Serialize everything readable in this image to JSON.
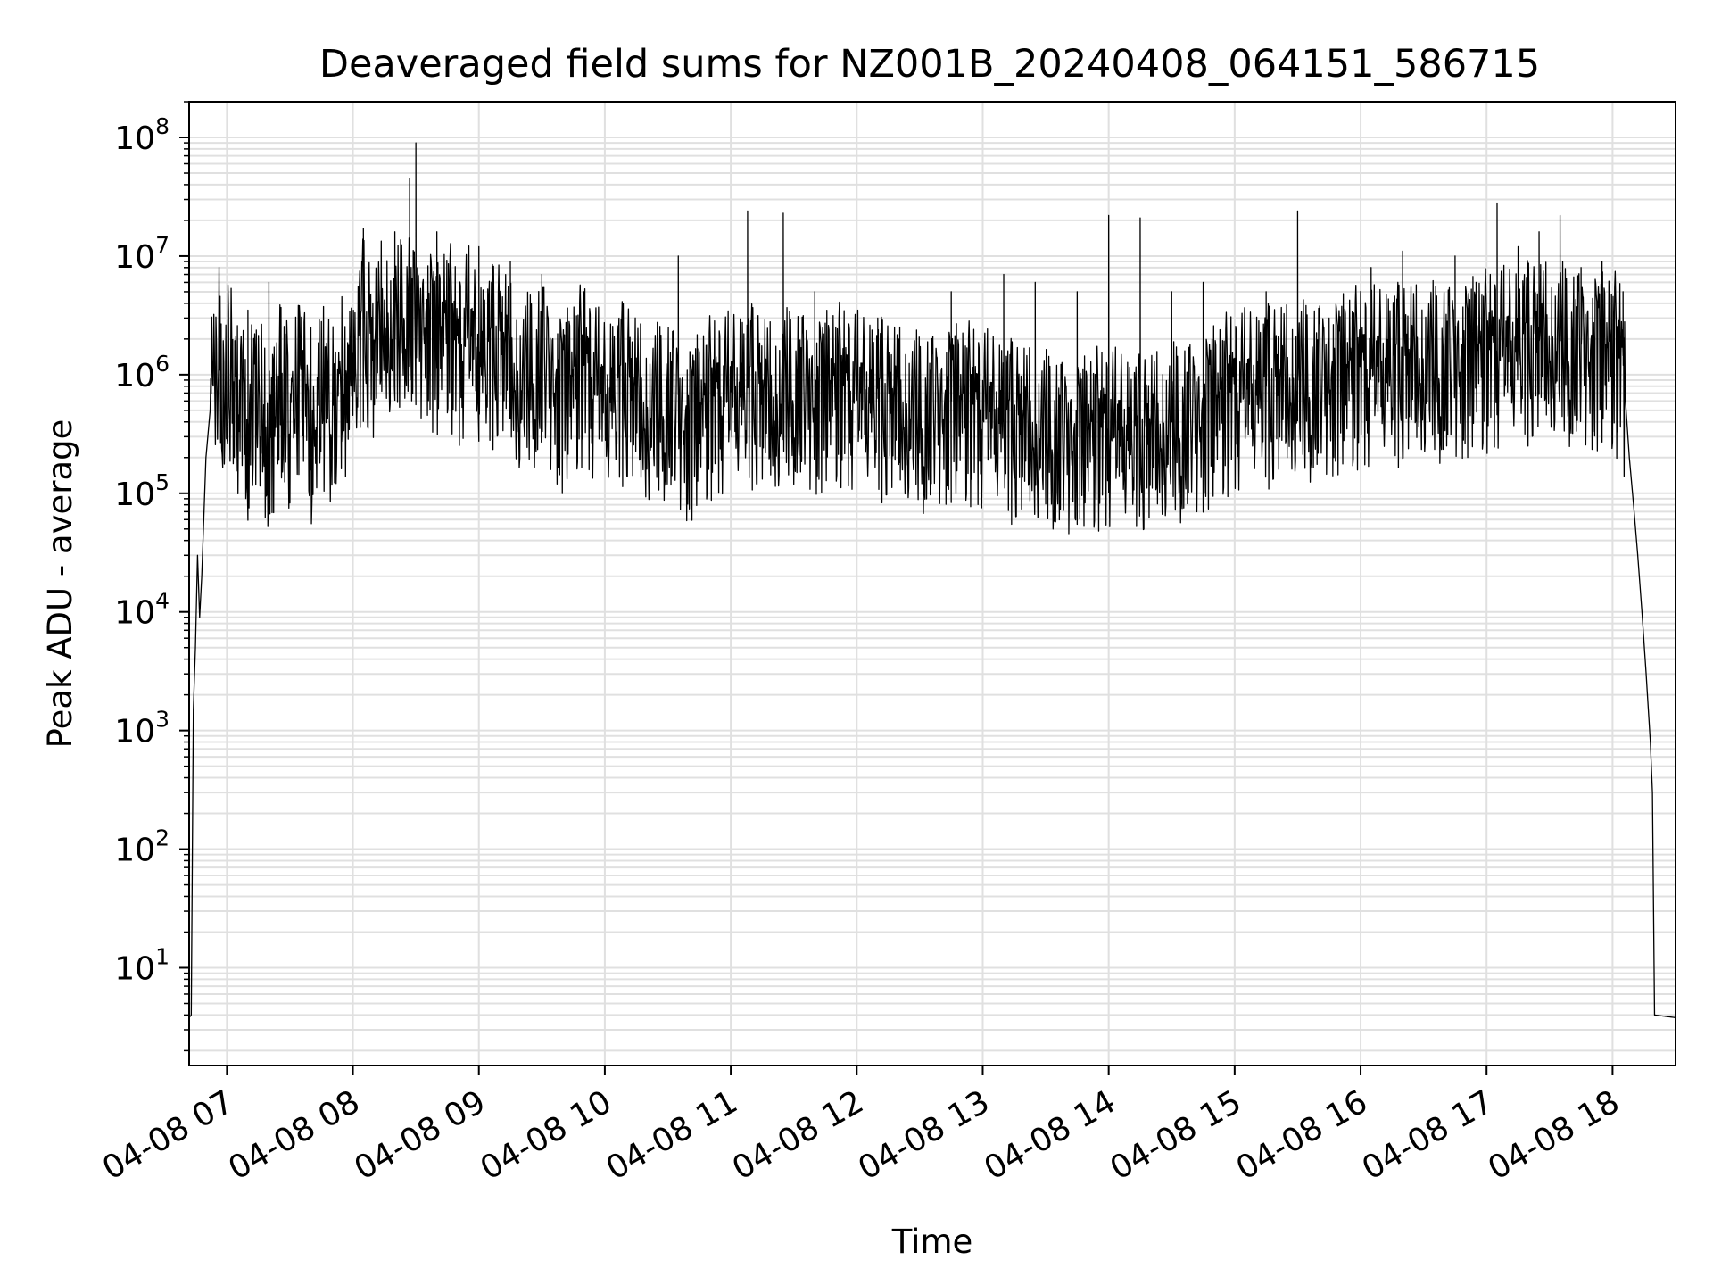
{
  "chart_data": {
    "type": "line",
    "title": "Deaveraged field sums for NZ001B_20240408_064151_586715",
    "xlabel": "Time",
    "ylabel": "Peak ADU - average",
    "yscale": "log",
    "grid": true,
    "line_color": "#000000",
    "grid_color": "#e0e0e0",
    "xlim": [
      "2024-04-08 06:42",
      "2024-04-08 18:30"
    ],
    "ylim": [
      1.5,
      200000000.0
    ],
    "x_ticks": [
      {
        "value": "2024-04-08 07:00",
        "label": "04-08 07"
      },
      {
        "value": "2024-04-08 08:00",
        "label": "04-08 08"
      },
      {
        "value": "2024-04-08 09:00",
        "label": "04-08 09"
      },
      {
        "value": "2024-04-08 10:00",
        "label": "04-08 10"
      },
      {
        "value": "2024-04-08 11:00",
        "label": "04-08 11"
      },
      {
        "value": "2024-04-08 12:00",
        "label": "04-08 12"
      },
      {
        "value": "2024-04-08 13:00",
        "label": "04-08 13"
      },
      {
        "value": "2024-04-08 14:00",
        "label": "04-08 14"
      },
      {
        "value": "2024-04-08 15:00",
        "label": "04-08 15"
      },
      {
        "value": "2024-04-08 16:00",
        "label": "04-08 16"
      },
      {
        "value": "2024-04-08 17:00",
        "label": "04-08 17"
      },
      {
        "value": "2024-04-08 18:00",
        "label": "04-08 18"
      }
    ],
    "y_ticks": [
      {
        "value": 10,
        "base": "10",
        "exp": "1"
      },
      {
        "value": 100,
        "base": "10",
        "exp": "2"
      },
      {
        "value": 1000,
        "base": "10",
        "exp": "3"
      },
      {
        "value": 10000,
        "base": "10",
        "exp": "4"
      },
      {
        "value": 100000,
        "base": "10",
        "exp": "5"
      },
      {
        "value": 1000000,
        "base": "10",
        "exp": "6"
      },
      {
        "value": 10000000,
        "base": "10",
        "exp": "7"
      },
      {
        "value": 100000000,
        "base": "10",
        "exp": "8"
      }
    ],
    "series": [
      {
        "points": [
          [
            "2024-04-08 06:42",
            3.8
          ],
          [
            "2024-04-08 06:43",
            4
          ],
          [
            "2024-04-08 06:44",
            1500
          ],
          [
            "2024-04-08 06:45",
            5000
          ],
          [
            "2024-04-08 06:46",
            30000
          ],
          [
            "2024-04-08 06:47",
            9000
          ],
          [
            "2024-04-08 06:48",
            20000
          ],
          [
            "2024-04-08 06:50",
            200000
          ],
          [
            "2024-04-08 06:52",
            500000
          ],
          [
            "2024-04-08 06:54",
            1200000
          ],
          [
            "2024-04-08 06:56",
            2000000
          ],
          [
            "2024-04-08 06:58",
            800000
          ],
          [
            "2024-04-08 07:00",
            1500000
          ],
          [
            "2024-04-08 07:05",
            600000
          ],
          [
            "2024-04-08 07:10",
            400000
          ],
          [
            "2024-04-08 07:15",
            1000000
          ],
          [
            "2024-04-08 07:20",
            300000
          ],
          [
            "2024-04-08 07:25",
            900000
          ],
          [
            "2024-04-08 07:30",
            500000
          ],
          [
            "2024-04-08 07:35",
            1100000
          ],
          [
            "2024-04-08 07:40",
            400000
          ],
          [
            "2024-04-08 07:45",
            800000
          ],
          [
            "2024-04-08 07:50",
            600000
          ],
          [
            "2024-04-08 07:55",
            1000000
          ],
          [
            "2024-04-08 08:00",
            900000
          ],
          [
            "2024-04-08 08:05",
            3000000
          ],
          [
            "2024-04-08 08:10",
            1500000
          ],
          [
            "2024-04-08 08:15",
            4000000
          ],
          [
            "2024-04-08 08:20",
            2000000
          ],
          [
            "2024-04-08 08:25",
            5000000
          ],
          [
            "2024-04-08 08:30",
            2500000
          ],
          [
            "2024-04-08 08:35",
            3500000
          ],
          [
            "2024-04-08 08:40",
            1800000
          ],
          [
            "2024-04-08 08:45",
            3000000
          ],
          [
            "2024-04-08 08:50",
            1500000
          ],
          [
            "2024-04-08 08:55",
            2500000
          ],
          [
            "2024-04-08 09:00",
            1300000
          ],
          [
            "2024-04-08 09:10",
            2000000
          ],
          [
            "2024-04-08 09:20",
            900000
          ],
          [
            "2024-04-08 09:30",
            1500000
          ],
          [
            "2024-04-08 09:40",
            700000
          ],
          [
            "2024-04-08 09:50",
            1200000
          ],
          [
            "2024-04-08 10:00",
            600000
          ],
          [
            "2024-04-08 10:10",
            900000
          ],
          [
            "2024-04-08 10:20",
            500000
          ],
          [
            "2024-04-08 10:30",
            700000
          ],
          [
            "2024-04-08 10:40",
            400000
          ],
          [
            "2024-04-08 10:50",
            600000
          ],
          [
            "2024-04-08 11:00",
            700000
          ],
          [
            "2024-04-08 11:10",
            800000
          ],
          [
            "2024-04-08 11:20",
            600000
          ],
          [
            "2024-04-08 11:30",
            900000
          ],
          [
            "2024-04-08 11:40",
            700000
          ],
          [
            "2024-04-08 11:50",
            800000
          ],
          [
            "2024-04-08 12:00",
            700000
          ],
          [
            "2024-04-08 12:15",
            600000
          ],
          [
            "2024-04-08 12:30",
            500000
          ],
          [
            "2024-04-08 12:45",
            600000
          ],
          [
            "2024-04-08 13:00",
            500000
          ],
          [
            "2024-04-08 13:15",
            400000
          ],
          [
            "2024-04-08 13:30",
            350000
          ],
          [
            "2024-04-08 13:45",
            300000
          ],
          [
            "2024-04-08 14:00",
            350000
          ],
          [
            "2024-04-08 14:15",
            300000
          ],
          [
            "2024-04-08 14:30",
            400000
          ],
          [
            "2024-04-08 14:45",
            500000
          ],
          [
            "2024-04-08 15:00",
            700000
          ],
          [
            "2024-04-08 15:15",
            800000
          ],
          [
            "2024-04-08 15:30",
            900000
          ],
          [
            "2024-04-08 15:45",
            1000000
          ],
          [
            "2024-04-08 16:00",
            1100000
          ],
          [
            "2024-04-08 16:15",
            1200000
          ],
          [
            "2024-04-08 16:30",
            1300000
          ],
          [
            "2024-04-08 16:45",
            1400000
          ],
          [
            "2024-04-08 17:00",
            1500000
          ],
          [
            "2024-04-08 17:15",
            1800000
          ],
          [
            "2024-04-08 17:30",
            2000000
          ],
          [
            "2024-04-08 17:45",
            1800000
          ],
          [
            "2024-04-08 18:00",
            1500000
          ],
          [
            "2024-04-08 18:05",
            1200000
          ],
          [
            "2024-04-08 18:08",
            200000
          ],
          [
            "2024-04-08 18:10",
            80000
          ],
          [
            "2024-04-08 18:12",
            30000
          ],
          [
            "2024-04-08 18:14",
            10000
          ],
          [
            "2024-04-08 18:16",
            3000
          ],
          [
            "2024-04-08 18:18",
            800
          ],
          [
            "2024-04-08 18:19",
            300
          ],
          [
            "2024-04-08 18:20",
            4
          ],
          [
            "2024-04-08 18:30",
            3.8
          ]
        ],
        "peaks": [
          [
            "2024-04-08 07:10",
            3500000
          ],
          [
            "2024-04-08 07:20",
            6000000
          ],
          [
            "2024-04-08 07:40",
            2500000
          ],
          [
            "2024-04-08 08:05",
            17000000
          ],
          [
            "2024-04-08 08:20",
            16000000
          ],
          [
            "2024-04-08 08:27",
            45000000
          ],
          [
            "2024-04-08 08:30",
            90000000
          ],
          [
            "2024-04-08 08:40",
            16000000
          ],
          [
            "2024-04-08 09:00",
            12000000
          ],
          [
            "2024-04-08 09:15",
            9000000
          ],
          [
            "2024-04-08 09:30",
            7000000
          ],
          [
            "2024-04-08 09:50",
            5000000
          ],
          [
            "2024-04-08 10:35",
            10000000
          ],
          [
            "2024-04-08 11:08",
            24000000
          ],
          [
            "2024-04-08 11:25",
            23000000
          ],
          [
            "2024-04-08 11:40",
            5000000
          ],
          [
            "2024-04-08 12:10",
            3000000
          ],
          [
            "2024-04-08 12:20",
            2000000
          ],
          [
            "2024-04-08 12:45",
            5000000
          ],
          [
            "2024-04-08 13:10",
            7000000
          ],
          [
            "2024-04-08 13:25",
            6000000
          ],
          [
            "2024-04-08 13:45",
            5000000
          ],
          [
            "2024-04-08 14:00",
            22000000
          ],
          [
            "2024-04-08 14:15",
            21000000
          ],
          [
            "2024-04-08 14:30",
            5000000
          ],
          [
            "2024-04-08 14:45",
            6000000
          ],
          [
            "2024-04-08 15:15",
            5000000
          ],
          [
            "2024-04-08 15:30",
            24000000
          ],
          [
            "2024-04-08 15:45",
            3000000
          ],
          [
            "2024-04-08 16:05",
            8000000
          ],
          [
            "2024-04-08 16:20",
            11000000
          ],
          [
            "2024-04-08 16:45",
            10000000
          ],
          [
            "2024-04-08 16:55",
            6000000
          ],
          [
            "2024-04-08 17:05",
            28000000
          ],
          [
            "2024-04-08 17:15",
            12000000
          ],
          [
            "2024-04-08 17:25",
            16000000
          ],
          [
            "2024-04-08 17:35",
            22000000
          ],
          [
            "2024-04-08 17:45",
            8000000
          ],
          [
            "2024-04-08 17:55",
            9000000
          ],
          [
            "2024-04-08 18:05",
            5000000
          ]
        ]
      }
    ]
  }
}
